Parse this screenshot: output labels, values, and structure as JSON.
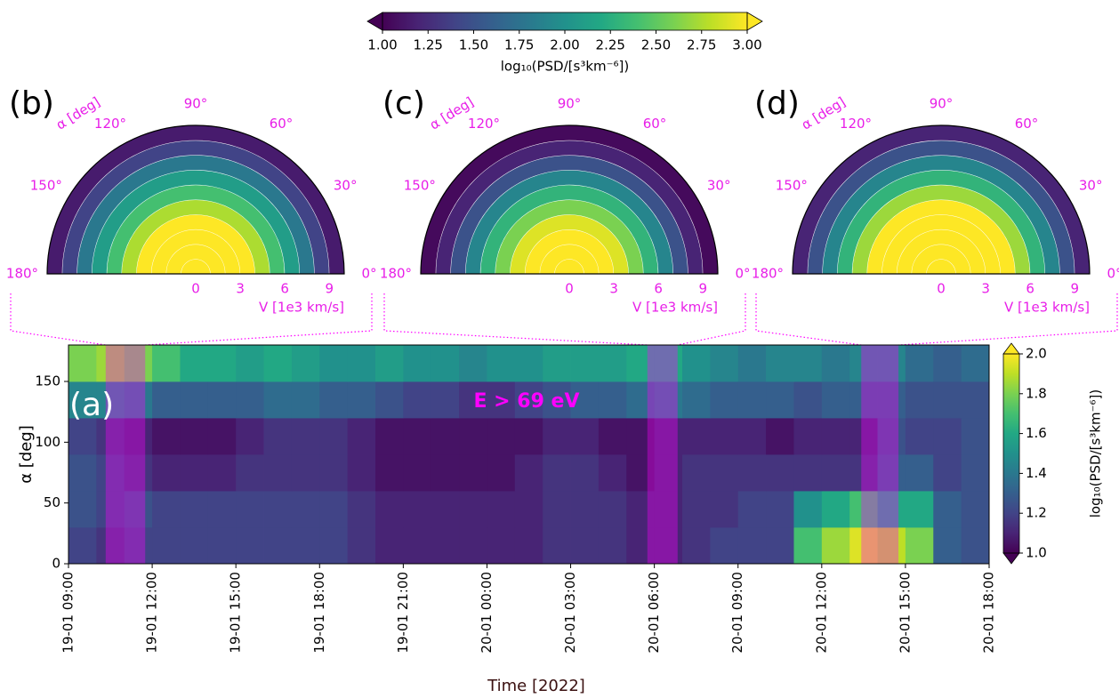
{
  "chart_data": [
    {
      "type": "colorbar",
      "label": "log₁₀(PSD/[s³km⁻⁶])",
      "colormap": "viridis",
      "lim": [
        1,
        3
      ],
      "extend": "both",
      "ticks": [
        {
          "value": 1,
          "label": "1.00"
        },
        {
          "value": 1.25,
          "label": "1.25"
        },
        {
          "value": 1.5,
          "label": "1.50"
        },
        {
          "value": 1.75,
          "label": "1.75"
        },
        {
          "value": 2,
          "label": "2.00"
        },
        {
          "value": 2.25,
          "label": "2.25"
        },
        {
          "value": 2.5,
          "label": "2.50"
        },
        {
          "value": 2.75,
          "label": "2.75"
        },
        {
          "value": 3,
          "label": "3.00"
        }
      ]
    },
    {
      "type": "polar-heatmap",
      "panel": "(b)",
      "theta_label": "α [deg]",
      "r_label": "V [1e3 km/s]",
      "thetalim": [
        0,
        180
      ],
      "thetaticks": [
        {
          "value": 0,
          "label": "0°"
        },
        {
          "value": 30,
          "label": "30°"
        },
        {
          "value": 60,
          "label": "60°"
        },
        {
          "value": 90,
          "label": "90°"
        },
        {
          "value": 120,
          "label": "120°"
        },
        {
          "value": 150,
          "label": "150°"
        },
        {
          "value": 180,
          "label": "180°"
        }
      ],
      "rlim": [
        0,
        10
      ],
      "rticks": [
        0,
        3,
        6,
        9
      ],
      "r_bins": [
        0,
        1,
        2,
        3,
        4,
        5,
        6,
        7,
        8,
        9,
        10
      ],
      "values": [
        3,
        3,
        3,
        3,
        2.75,
        2.4,
        2.1,
        1.8,
        1.4,
        1.15
      ],
      "time_range": [
        "2022-01-19T10:20",
        "2022-01-19T11:45"
      ],
      "highlight_color": "#ff00ff"
    },
    {
      "type": "polar-heatmap",
      "panel": "(c)",
      "theta_label": "α [deg]",
      "r_label": "V [1e3 km/s]",
      "thetalim": [
        0,
        180
      ],
      "thetaticks": [
        {
          "value": 0,
          "label": "0°"
        },
        {
          "value": 30,
          "label": "30°"
        },
        {
          "value": 60,
          "label": "60°"
        },
        {
          "value": 90,
          "label": "90°"
        },
        {
          "value": 120,
          "label": "120°"
        },
        {
          "value": 150,
          "label": "150°"
        },
        {
          "value": 180,
          "label": "180°"
        }
      ],
      "rlim": [
        0,
        10
      ],
      "rticks": [
        0,
        3,
        6,
        9
      ],
      "r_bins": [
        0,
        1,
        2,
        3,
        4,
        5,
        6,
        7,
        8,
        9,
        10
      ],
      "values": [
        3,
        3,
        3,
        2.9,
        2.6,
        2.3,
        1.9,
        1.5,
        1.2,
        1.05
      ],
      "time_range": [
        "2022-01-20T05:45",
        "2022-01-20T06:50"
      ],
      "highlight_color": "#ff00ff"
    },
    {
      "type": "polar-heatmap",
      "panel": "(d)",
      "theta_label": "α [deg]",
      "r_label": "V [1e3 km/s]",
      "thetalim": [
        0,
        180
      ],
      "thetaticks": [
        {
          "value": 0,
          "label": "0°"
        },
        {
          "value": 30,
          "label": "30°"
        },
        {
          "value": 60,
          "label": "60°"
        },
        {
          "value": 90,
          "label": "90°"
        },
        {
          "value": 120,
          "label": "120°"
        },
        {
          "value": 150,
          "label": "150°"
        },
        {
          "value": 180,
          "label": "180°"
        }
      ],
      "rlim": [
        0,
        10
      ],
      "rticks": [
        0,
        3,
        6,
        9
      ],
      "r_bins": [
        0,
        1,
        2,
        3,
        4,
        5,
        6,
        7,
        8,
        9,
        10
      ],
      "values": [
        3,
        3,
        3,
        3,
        3,
        2.7,
        2.3,
        1.9,
        1.5,
        1.2
      ],
      "time_range": [
        "2022-01-20T13:25",
        "2022-01-20T14:45"
      ],
      "highlight_color": "#ff00ff"
    },
    {
      "type": "heatmap",
      "panel": "(a)",
      "annotation": "E > 69 eV",
      "ylabel": "α [deg]",
      "xlabel": "Time [2022]",
      "colormap": "viridis",
      "xlim": [
        "2022-01-19T09:00",
        "2022-01-20T18:00"
      ],
      "xticks": [
        {
          "value": "2022-01-19T09:00",
          "label": "19-01 09:00"
        },
        {
          "value": "2022-01-19T12:00",
          "label": "19-01 12:00"
        },
        {
          "value": "2022-01-19T15:00",
          "label": "19-01 15:00"
        },
        {
          "value": "2022-01-19T18:00",
          "label": "19-01 18:00"
        },
        {
          "value": "2022-01-19T21:00",
          "label": "19-01 21:00"
        },
        {
          "value": "2022-01-20T00:00",
          "label": "20-01 00:00"
        },
        {
          "value": "2022-01-20T03:00",
          "label": "20-01 03:00"
        },
        {
          "value": "2022-01-20T06:00",
          "label": "20-01 06:00"
        },
        {
          "value": "2022-01-20T09:00",
          "label": "20-01 09:00"
        },
        {
          "value": "2022-01-20T12:00",
          "label": "20-01 12:00"
        },
        {
          "value": "2022-01-20T15:00",
          "label": "20-01 15:00"
        },
        {
          "value": "2022-01-20T18:00",
          "label": "20-01 18:00"
        }
      ],
      "ylim": [
        0,
        180
      ],
      "yticks": [
        0,
        50,
        100,
        150
      ],
      "x_bins": [
        "2022-01-19T09:00",
        "2022-01-19T10:00",
        "2022-01-19T11:00",
        "2022-01-19T12:00",
        "2022-01-19T13:00",
        "2022-01-19T14:00",
        "2022-01-19T15:00",
        "2022-01-19T16:00",
        "2022-01-19T17:00",
        "2022-01-19T18:00",
        "2022-01-19T19:00",
        "2022-01-19T20:00",
        "2022-01-19T21:00",
        "2022-01-19T22:00",
        "2022-01-19T23:00",
        "2022-01-20T00:00",
        "2022-01-20T01:00",
        "2022-01-20T02:00",
        "2022-01-20T03:00",
        "2022-01-20T04:00",
        "2022-01-20T05:00",
        "2022-01-20T06:00",
        "2022-01-20T07:00",
        "2022-01-20T08:00",
        "2022-01-20T09:00",
        "2022-01-20T10:00",
        "2022-01-20T11:00",
        "2022-01-20T12:00",
        "2022-01-20T13:00",
        "2022-01-20T14:00",
        "2022-01-20T15:00",
        "2022-01-20T16:00",
        "2022-01-20T17:00",
        "2022-01-20T18:00"
      ],
      "y_bins": [
        0,
        30,
        60,
        90,
        120,
        150,
        180
      ],
      "z": [
        [
          1.2,
          1.15,
          1.2,
          1.2,
          1.2,
          1.2,
          1.2,
          1.2,
          1.2,
          1.2,
          1.15,
          1.1,
          1.1,
          1.1,
          1.1,
          1.1,
          1.1,
          1.15,
          1.15,
          1.15,
          1.1,
          1.1,
          1.15,
          1.2,
          1.2,
          1.2,
          1.7,
          1.85,
          1.95,
          1.9,
          1.8,
          1.3,
          1.25
        ],
        [
          1.25,
          1.2,
          1.25,
          1.2,
          1.2,
          1.2,
          1.2,
          1.2,
          1.2,
          1.2,
          1.15,
          1.1,
          1.1,
          1.1,
          1.1,
          1.1,
          1.1,
          1.15,
          1.15,
          1.15,
          1.1,
          1.1,
          1.15,
          1.15,
          1.2,
          1.2,
          1.5,
          1.6,
          1.7,
          1.6,
          1.6,
          1.3,
          1.25
        ],
        [
          1.25,
          1.2,
          1.15,
          1.1,
          1.1,
          1.1,
          1.15,
          1.15,
          1.15,
          1.15,
          1.1,
          1.05,
          1.05,
          1.05,
          1.05,
          1.05,
          1.1,
          1.15,
          1.15,
          1.1,
          1.05,
          1.1,
          1.15,
          1.15,
          1.15,
          1.15,
          1.15,
          1.15,
          1.15,
          1.3,
          1.3,
          1.2,
          1.25
        ],
        [
          1.2,
          1.15,
          1.1,
          1.05,
          1.05,
          1.05,
          1.1,
          1.15,
          1.15,
          1.15,
          1.1,
          1.05,
          1.05,
          1.05,
          1.05,
          1.05,
          1.05,
          1.1,
          1.1,
          1.05,
          1.05,
          1.1,
          1.1,
          1.1,
          1.1,
          1.05,
          1.1,
          1.1,
          1.1,
          1.25,
          1.2,
          1.2,
          1.25
        ],
        [
          1.45,
          1.45,
          1.4,
          1.3,
          1.3,
          1.3,
          1.3,
          1.35,
          1.35,
          1.3,
          1.3,
          1.25,
          1.2,
          1.2,
          1.15,
          1.15,
          1.2,
          1.25,
          1.3,
          1.3,
          1.35,
          1.4,
          1.35,
          1.3,
          1.3,
          1.3,
          1.25,
          1.3,
          1.3,
          1.3,
          1.25,
          1.25,
          1.25
        ],
        [
          1.8,
          1.85,
          1.8,
          1.7,
          1.6,
          1.6,
          1.55,
          1.6,
          1.55,
          1.5,
          1.5,
          1.55,
          1.5,
          1.5,
          1.45,
          1.5,
          1.5,
          1.55,
          1.55,
          1.55,
          1.6,
          1.6,
          1.5,
          1.45,
          1.4,
          1.45,
          1.45,
          1.4,
          1.45,
          1.45,
          1.35,
          1.3,
          1.35
        ]
      ],
      "colorbar": {
        "label": "log₁₀(PSD/[s³km⁻⁶])",
        "lim": [
          1,
          2
        ],
        "extend": "both",
        "ticks": [
          {
            "value": 1,
            "label": "1.0"
          },
          {
            "value": 1.2,
            "label": "1.2"
          },
          {
            "value": 1.4,
            "label": "1.4"
          },
          {
            "value": 1.6,
            "label": "1.6"
          },
          {
            "value": 1.8,
            "label": "1.8"
          },
          {
            "value": 2,
            "label": "2.0"
          }
        ]
      }
    }
  ]
}
